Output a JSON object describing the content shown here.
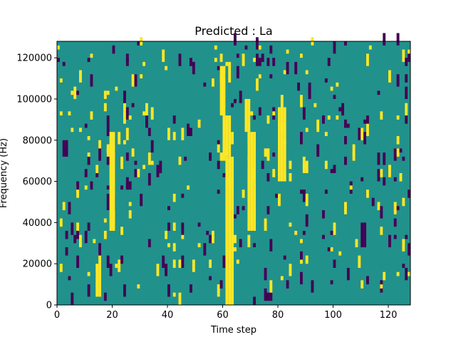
{
  "chart_data": {
    "type": "heatmap",
    "title": "Predicted : La",
    "xlabel": "Time step",
    "ylabel": "Frequency (Hz)",
    "xlim": [
      0,
      128
    ],
    "ylim": [
      0,
      128000
    ],
    "xticks": [
      0,
      20,
      40,
      60,
      80,
      100,
      120
    ],
    "yticks": [
      0,
      20000,
      40000,
      60000,
      80000,
      100000,
      120000
    ],
    "grid": false,
    "legend": "none",
    "colors": {
      "background": "#21918c",
      "low": "#440154",
      "high": "#fde725"
    },
    "background_value": 0,
    "cell_width": 1,
    "cell_height": 2000,
    "cells_high": [
      [
        61,
        0,
        36
      ],
      [
        62,
        0,
        36
      ],
      [
        63,
        0,
        36
      ],
      [
        60,
        36,
        46
      ],
      [
        61,
        36,
        46
      ],
      [
        62,
        36,
        46
      ],
      [
        59,
        46,
        58
      ],
      [
        60,
        46,
        58
      ],
      [
        69,
        18,
        42
      ],
      [
        70,
        18,
        42
      ],
      [
        71,
        18,
        42
      ],
      [
        68,
        42,
        50
      ],
      [
        69,
        42,
        50
      ],
      [
        80,
        30,
        48
      ],
      [
        81,
        30,
        48
      ],
      [
        82,
        30,
        48
      ],
      [
        19,
        18,
        42
      ],
      [
        20,
        18,
        42
      ],
      [
        14,
        2,
        10
      ],
      [
        15,
        2,
        10
      ]
    ],
    "cells_low": [
      [
        2,
        36,
        40
      ],
      [
        3,
        36,
        40
      ],
      [
        25,
        28,
        30
      ],
      [
        26,
        28,
        30
      ],
      [
        110,
        14,
        20
      ],
      [
        111,
        14,
        20
      ]
    ]
  }
}
